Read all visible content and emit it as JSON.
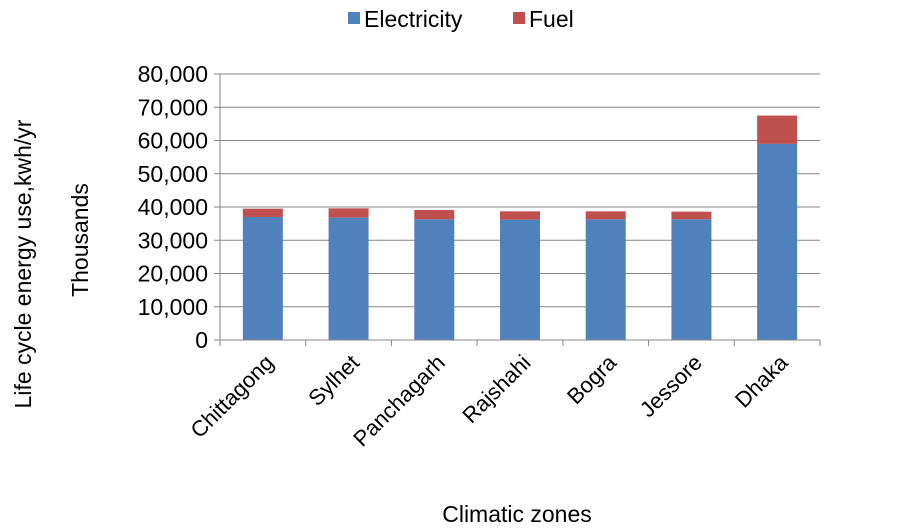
{
  "chart_data": {
    "type": "bar",
    "stacked": true,
    "title": "",
    "xlabel": "Climatic zones",
    "ylabel_outer": "Life cycle energy use,kwh/yr",
    "ylabel_units": "Thousands",
    "ylim": [
      0,
      80000
    ],
    "yticks": [
      0,
      10000,
      20000,
      30000,
      40000,
      50000,
      60000,
      70000,
      80000
    ],
    "ytick_labels": [
      "0",
      "10,000",
      "20,000",
      "30,000",
      "40,000",
      "50,000",
      "60,000",
      "70,000",
      "80,000"
    ],
    "categories": [
      "Chittagong",
      "Sylhet",
      "Panchagarh",
      "Rajshahi",
      "Bogra",
      "Jessore",
      "Dhaka"
    ],
    "series": [
      {
        "name": "Electricity",
        "color": "#4f81bd",
        "values": [
          37000,
          36800,
          36300,
          36200,
          36300,
          36300,
          59000
        ]
      },
      {
        "name": "Fuel",
        "color": "#c0504d",
        "values": [
          2500,
          2800,
          2800,
          2500,
          2400,
          2300,
          8500
        ]
      }
    ],
    "grid": true,
    "legend_position": "top"
  }
}
